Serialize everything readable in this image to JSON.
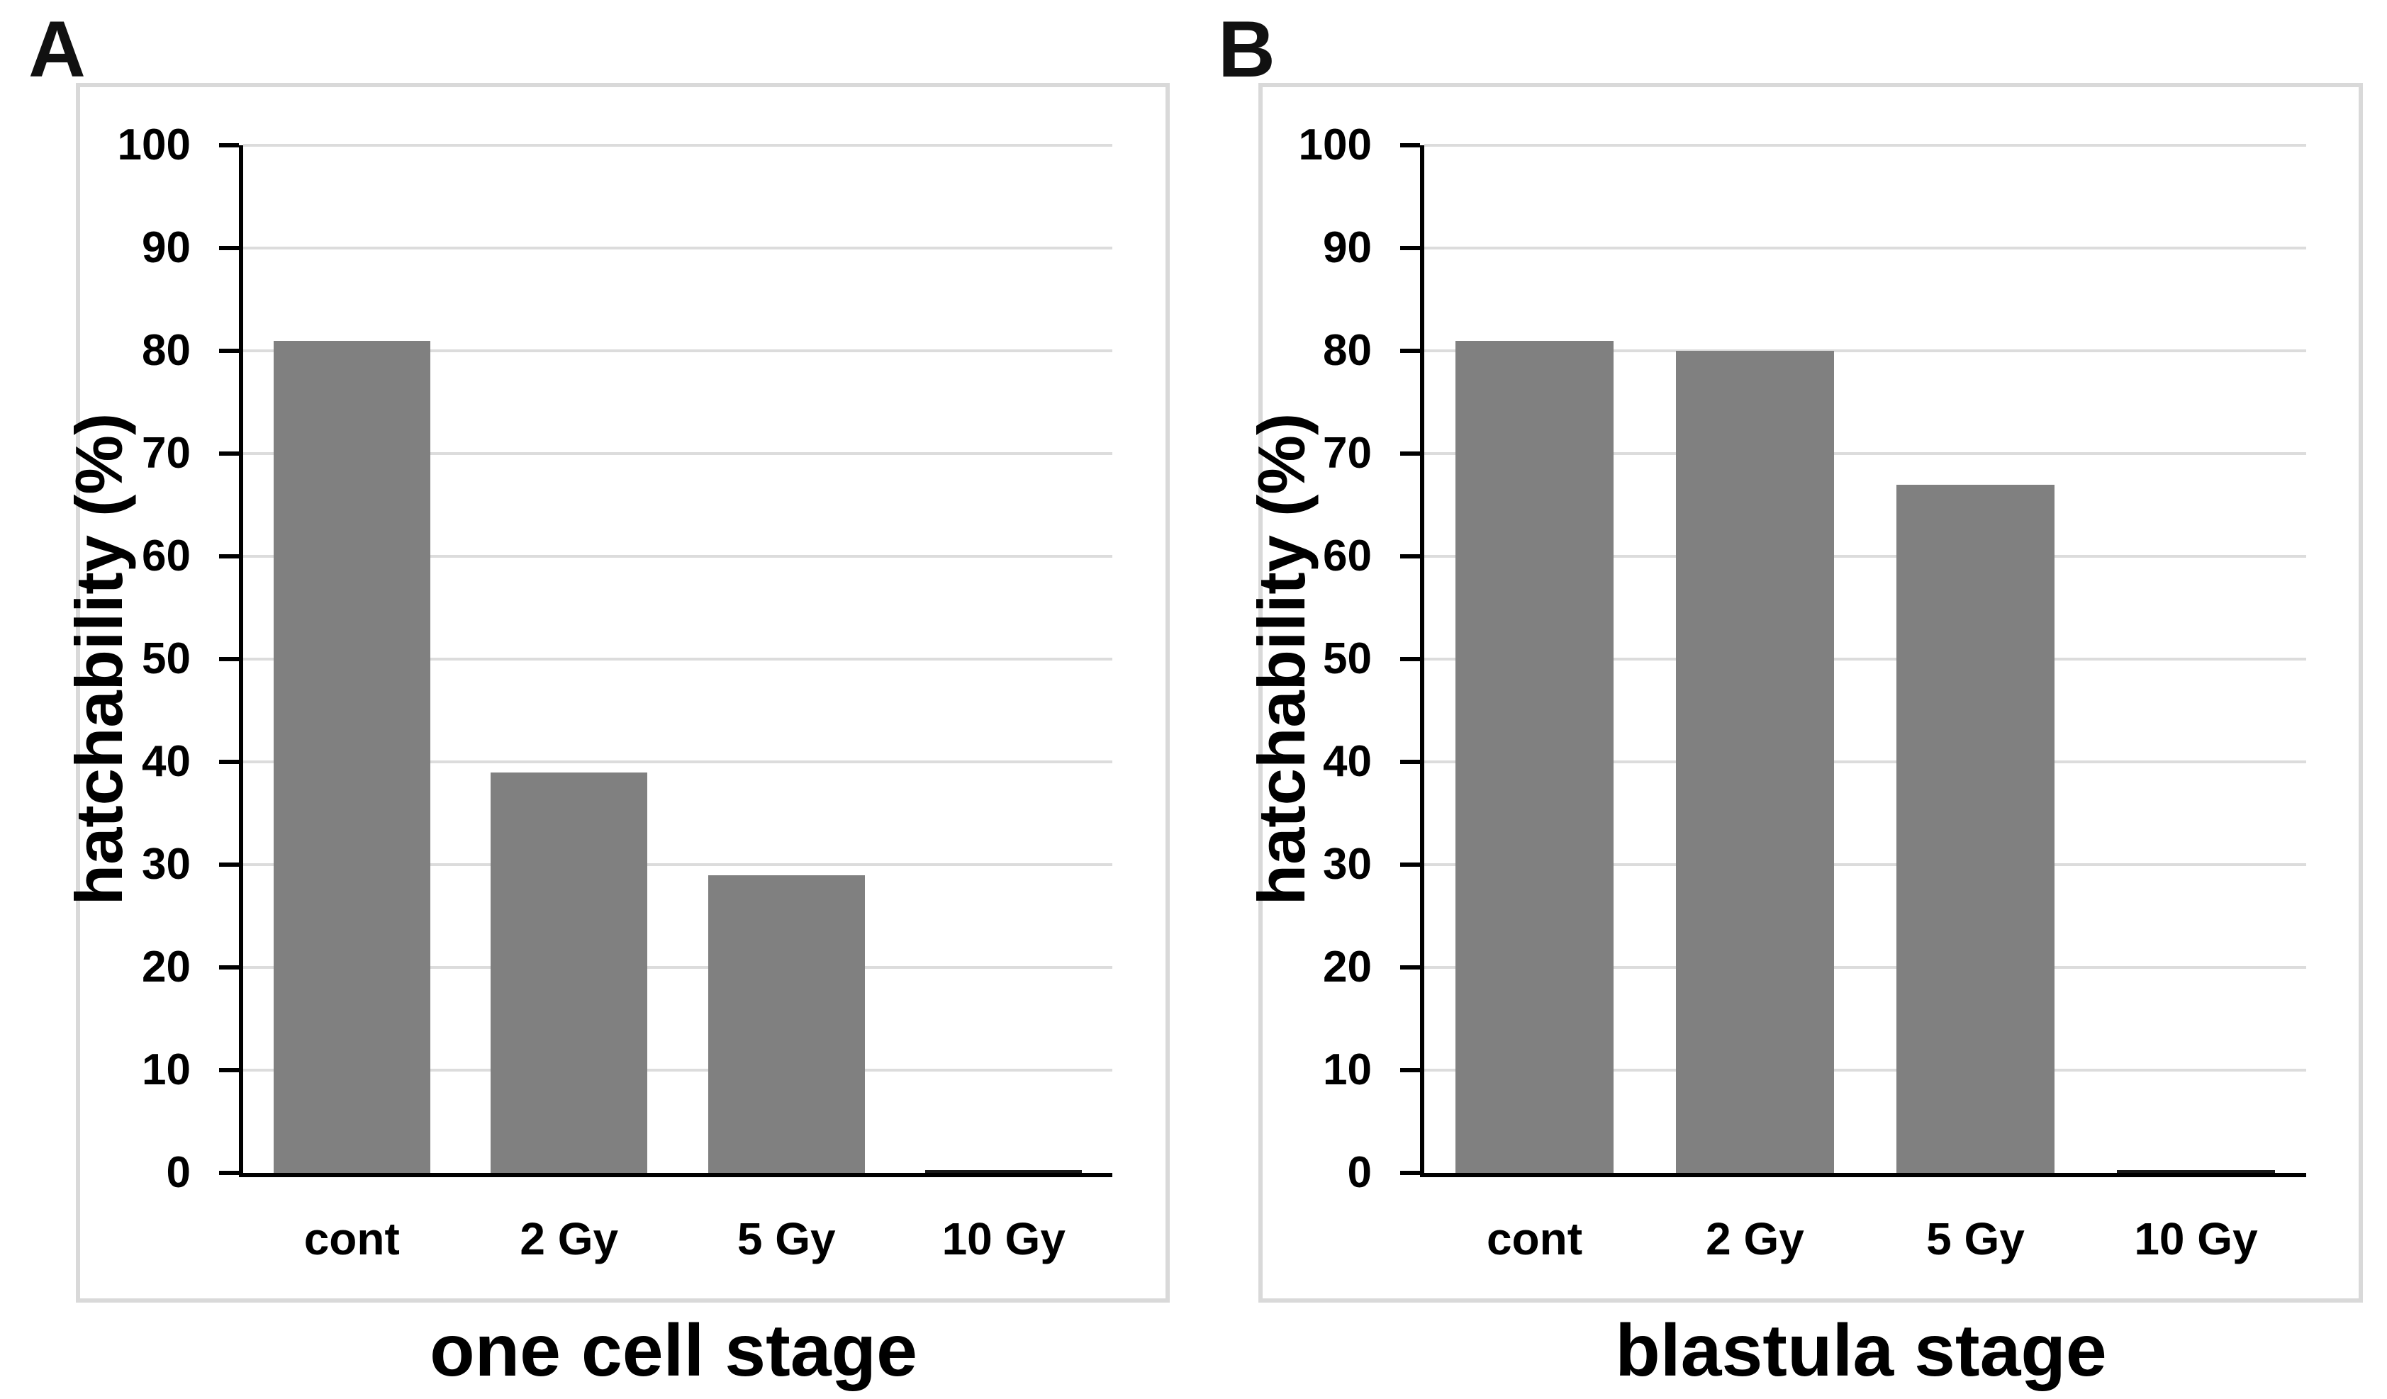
{
  "figure": {
    "background": "#ffffff",
    "panel_letters": [
      "A",
      "B"
    ]
  },
  "colors": {
    "bar": "#808080",
    "tiny_bar": "#1a1a1a",
    "grid": "#dcdcdc",
    "axis": "#000000",
    "panel_border": "#d9d9d9",
    "text": "#000000",
    "background": "#ffffff"
  },
  "chart_data": [
    {
      "type": "bar",
      "panel_letter": "A",
      "title": "",
      "categories": [
        "cont",
        "2 Gy",
        "5 Gy",
        "10 Gy"
      ],
      "values": [
        81,
        39,
        29,
        0.2
      ],
      "xlabel": "one cell stage",
      "ylabel": "hatchability (%)",
      "ylim": [
        0,
        100
      ],
      "ytick_step": 10,
      "yticks": [
        0,
        10,
        20,
        30,
        40,
        50,
        60,
        70,
        80,
        90,
        100
      ],
      "grid": true,
      "legend_position": "none",
      "bar_color": "#808080"
    },
    {
      "type": "bar",
      "panel_letter": "B",
      "title": "",
      "categories": [
        "cont",
        "2 Gy",
        "5 Gy",
        "10 Gy"
      ],
      "values": [
        81,
        80,
        67,
        0.2
      ],
      "xlabel": "blastula stage",
      "ylabel": "hatchability (%)",
      "ylim": [
        0,
        100
      ],
      "ytick_step": 10,
      "yticks": [
        0,
        10,
        20,
        30,
        40,
        50,
        60,
        70,
        80,
        90,
        100
      ],
      "grid": true,
      "legend_position": "none",
      "bar_color": "#808080"
    }
  ]
}
